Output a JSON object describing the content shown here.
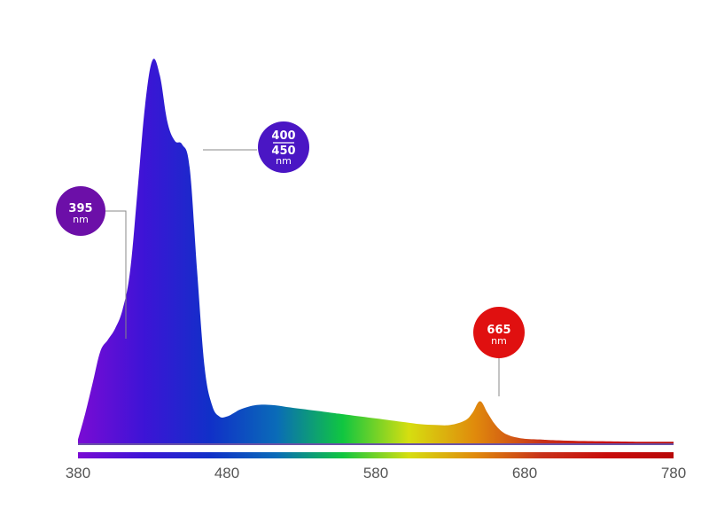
{
  "chart_data": {
    "type": "area",
    "title": "",
    "xlabel": "",
    "ylabel": "",
    "xlim": [
      380,
      780
    ],
    "ylim": [
      0,
      1
    ],
    "xticks": [
      "380",
      "480",
      "580",
      "680",
      "780"
    ],
    "series": [
      {
        "x": [
          380,
          385,
          390,
          395,
          400,
          405,
          410,
          415,
          420,
          425,
          430,
          435,
          440,
          445,
          450,
          455,
          460,
          465,
          470,
          475,
          480,
          485,
          490,
          500,
          510,
          520,
          530,
          540,
          550,
          560,
          570,
          580,
          590,
          600,
          610,
          620,
          630,
          640,
          645,
          650,
          655,
          660,
          665,
          670,
          675,
          680,
          690,
          700,
          720,
          740,
          760,
          780
        ],
        "values": [
          0.01,
          0.08,
          0.16,
          0.24,
          0.27,
          0.3,
          0.35,
          0.45,
          0.66,
          0.88,
          1.0,
          0.96,
          0.84,
          0.79,
          0.78,
          0.72,
          0.45,
          0.2,
          0.1,
          0.07,
          0.07,
          0.08,
          0.09,
          0.1,
          0.1,
          0.095,
          0.09,
          0.085,
          0.08,
          0.075,
          0.07,
          0.065,
          0.06,
          0.055,
          0.05,
          0.048,
          0.048,
          0.06,
          0.08,
          0.11,
          0.08,
          0.05,
          0.03,
          0.02,
          0.015,
          0.012,
          0.01,
          0.008,
          0.006,
          0.005,
          0.004,
          0.004
        ]
      }
    ],
    "annotations": [
      {
        "id": "395",
        "lines": [
          "395"
        ],
        "unit": "nm",
        "x": 395,
        "color": "#6c0fa8"
      },
      {
        "id": "400-450",
        "lines": [
          "400",
          "450"
        ],
        "unit": "nm",
        "x": 450,
        "color": "#4a16c4"
      },
      {
        "id": "665",
        "lines": [
          "665"
        ],
        "unit": "nm",
        "x": 665,
        "color": "#e01010"
      }
    ]
  },
  "colors": {
    "spectrum": [
      "#7a0bd4",
      "#3d14d6",
      "#1030c8",
      "#0a6bb8",
      "#10c640",
      "#d6de10",
      "#e08a0c",
      "#c8321a",
      "#c80c0c",
      "#b80808"
    ],
    "tick_text": "#555555",
    "leader_line": "#888888"
  }
}
